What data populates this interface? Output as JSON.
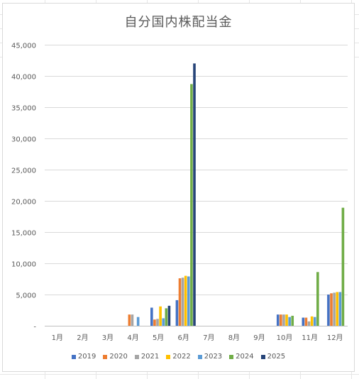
{
  "chart_data": {
    "type": "bar",
    "title": "自分国内株配当金",
    "xlabel": "",
    "ylabel": "",
    "ylim": [
      0,
      45000
    ],
    "yticks": [
      0,
      5000,
      10000,
      15000,
      20000,
      25000,
      30000,
      35000,
      40000,
      45000
    ],
    "ytick_labels": [
      "-",
      "5,000",
      "10,000",
      "15,000",
      "20,000",
      "25,000",
      "30,000",
      "35,000",
      "40,000",
      "45,000"
    ],
    "grid": true,
    "legend_position": "bottom",
    "categories": [
      "1月",
      "2月",
      "3月",
      "4月",
      "5月",
      "6月",
      "7月",
      "8月",
      "9月",
      "10月",
      "11月",
      "12月"
    ],
    "series": [
      {
        "name": "2019",
        "color": "#4472C4",
        "values": [
          0,
          0,
          0,
          0,
          2900,
          4100,
          0,
          0,
          0,
          1800,
          1300,
          5000
        ]
      },
      {
        "name": "2020",
        "color": "#ED7D31",
        "values": [
          0,
          0,
          0,
          1800,
          1000,
          7600,
          0,
          0,
          0,
          1800,
          1300,
          5200
        ]
      },
      {
        "name": "2021",
        "color": "#A5A5A5",
        "values": [
          0,
          0,
          0,
          1800,
          1100,
          7700,
          0,
          0,
          0,
          1800,
          700,
          5300
        ]
      },
      {
        "name": "2022",
        "color": "#FFC000",
        "values": [
          0,
          0,
          0,
          0,
          3100,
          8000,
          0,
          0,
          0,
          1800,
          1500,
          5400
        ]
      },
      {
        "name": "2023",
        "color": "#5B9BD5",
        "values": [
          0,
          0,
          0,
          1400,
          1200,
          7900,
          0,
          0,
          0,
          1400,
          1400,
          5400
        ]
      },
      {
        "name": "2024",
        "color": "#70AD47",
        "values": [
          0,
          0,
          0,
          0,
          2800,
          38700,
          0,
          0,
          0,
          1600,
          8600,
          18900
        ]
      },
      {
        "name": "2025",
        "color": "#264478",
        "values": [
          0,
          0,
          0,
          0,
          3200,
          42000,
          0,
          0,
          0,
          0,
          0,
          0
        ]
      }
    ]
  }
}
